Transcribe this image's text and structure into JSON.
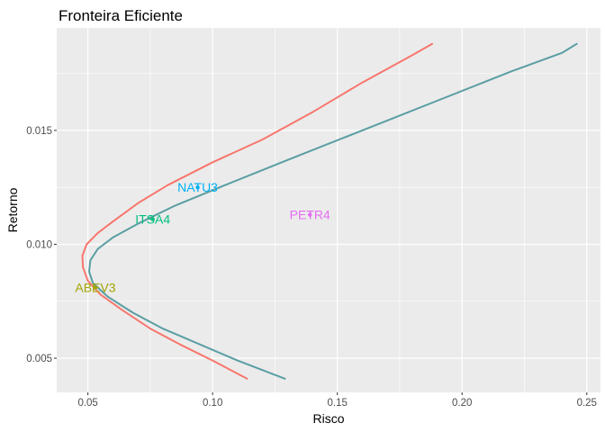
{
  "chart_data": {
    "type": "line",
    "title": "Fronteira Eficiente",
    "xlabel": "Risco",
    "ylabel": "Retorno",
    "xlim": [
      0.0375,
      0.2555
    ],
    "ylim": [
      0.0035,
      0.0195
    ],
    "x_ticks": [
      {
        "value": 0.05,
        "label": "0.05"
      },
      {
        "value": 0.1,
        "label": "0.10"
      },
      {
        "value": 0.15,
        "label": "0.15"
      },
      {
        "value": 0.2,
        "label": "0.20"
      },
      {
        "value": 0.25,
        "label": "0.25"
      }
    ],
    "y_ticks": [
      {
        "value": 0.005,
        "label": "0.005"
      },
      {
        "value": 0.01,
        "label": "0.010"
      },
      {
        "value": 0.015,
        "label": "0.015"
      }
    ],
    "grid": true,
    "background": "#ebebeb",
    "series": [
      {
        "color": "#f8766d",
        "points": [
          [
            0.1138,
            0.0041
          ],
          [
            0.1,
            0.0049
          ],
          [
            0.087,
            0.0056
          ],
          [
            0.075,
            0.0063
          ],
          [
            0.064,
            0.0071
          ],
          [
            0.055,
            0.0078
          ],
          [
            0.05,
            0.0084
          ],
          [
            0.048,
            0.009
          ],
          [
            0.0478,
            0.0095
          ],
          [
            0.0495,
            0.01
          ],
          [
            0.054,
            0.0105
          ],
          [
            0.06,
            0.011
          ],
          [
            0.07,
            0.0118
          ],
          [
            0.082,
            0.0126
          ],
          [
            0.1,
            0.0136
          ],
          [
            0.12,
            0.0146
          ],
          [
            0.14,
            0.0158
          ],
          [
            0.16,
            0.0171
          ],
          [
            0.18,
            0.0183
          ],
          [
            0.188,
            0.0188
          ]
        ]
      },
      {
        "color": "#5a9ea3",
        "points": [
          [
            0.129,
            0.0041
          ],
          [
            0.11,
            0.0049
          ],
          [
            0.095,
            0.0056
          ],
          [
            0.08,
            0.0063
          ],
          [
            0.068,
            0.007
          ],
          [
            0.058,
            0.0077
          ],
          [
            0.052,
            0.0083
          ],
          [
            0.0505,
            0.0088
          ],
          [
            0.051,
            0.0093
          ],
          [
            0.054,
            0.0098
          ],
          [
            0.06,
            0.0103
          ],
          [
            0.07,
            0.0109
          ],
          [
            0.085,
            0.0117
          ],
          [
            0.105,
            0.0126
          ],
          [
            0.13,
            0.0137
          ],
          [
            0.16,
            0.015
          ],
          [
            0.19,
            0.0163
          ],
          [
            0.22,
            0.0176
          ],
          [
            0.24,
            0.0184
          ],
          [
            0.246,
            0.0188
          ]
        ]
      }
    ],
    "assets": [
      {
        "label": "NATU3",
        "x": 0.094,
        "y": 0.0125,
        "color": "#00b0f6"
      },
      {
        "label": "ITSA4",
        "x": 0.076,
        "y": 0.0111,
        "color": "#00bf7d"
      },
      {
        "label": "PETR4",
        "x": 0.139,
        "y": 0.0113,
        "color": "#e76bf3"
      },
      {
        "label": "ABEV3",
        "x": 0.053,
        "y": 0.0081,
        "color": "#a3a500"
      }
    ]
  }
}
